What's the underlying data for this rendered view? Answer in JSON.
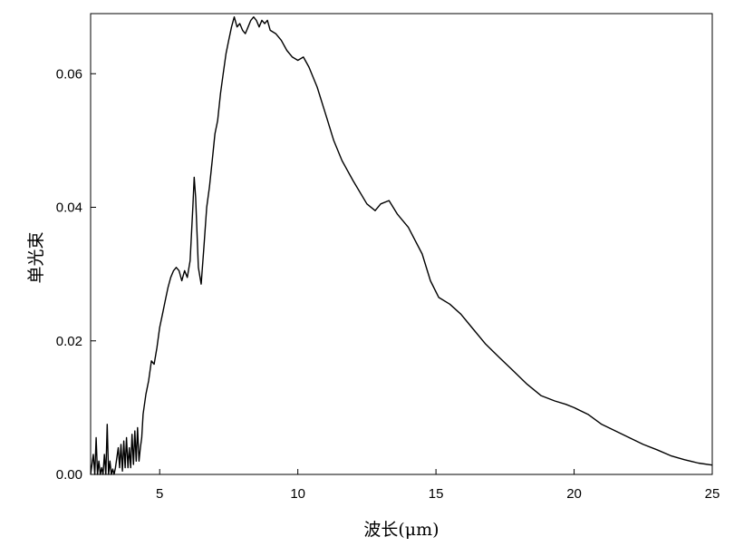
{
  "chart_data": {
    "type": "line",
    "title": "",
    "xlabel": "波长(μm)",
    "ylabel": "单光束",
    "xlim": [
      2.5,
      25
    ],
    "ylim": [
      0,
      0.069
    ],
    "xticks": [
      5,
      10,
      15,
      20,
      25
    ],
    "xtick_labels": [
      "5",
      "10",
      "15",
      "20",
      "25"
    ],
    "yticks": [
      0,
      0.02,
      0.04,
      0.06
    ],
    "ytick_labels": [
      "0.00",
      "0.02",
      "0.04",
      "0.06"
    ],
    "grid": false,
    "legend": "none",
    "line_color": "#000000",
    "series": [
      {
        "x": [
          2.5,
          2.6,
          2.65,
          2.7,
          2.75,
          2.8,
          2.85,
          2.9,
          2.95,
          3.0,
          3.05,
          3.1,
          3.15,
          3.2,
          3.25,
          3.3,
          3.35,
          3.4,
          3.5,
          3.55,
          3.6,
          3.65,
          3.7,
          3.75,
          3.8,
          3.85,
          3.9,
          3.95,
          4.0,
          4.05,
          4.1,
          4.15,
          4.2,
          4.25,
          4.3,
          4.35,
          4.4,
          4.5,
          4.6,
          4.7,
          4.8,
          4.9,
          5.0,
          5.1,
          5.2,
          5.3,
          5.4,
          5.5,
          5.6,
          5.7,
          5.8,
          5.9,
          6.0,
          6.1,
          6.2,
          6.25,
          6.3,
          6.4,
          6.5,
          6.6,
          6.7,
          6.8,
          6.9,
          7.0,
          7.1,
          7.2,
          7.3,
          7.4,
          7.5,
          7.6,
          7.7,
          7.8,
          7.9,
          8.0,
          8.1,
          8.2,
          8.3,
          8.4,
          8.5,
          8.6,
          8.7,
          8.8,
          8.9,
          9.0,
          9.2,
          9.4,
          9.6,
          9.8,
          10.0,
          10.2,
          10.4,
          10.7,
          11.0,
          11.3,
          11.6,
          12.0,
          12.5,
          12.8,
          13.0,
          13.3,
          13.6,
          14.0,
          14.5,
          14.8,
          15.1,
          15.5,
          15.9,
          16.3,
          16.8,
          17.3,
          17.8,
          18.3,
          18.8,
          19.3,
          19.7,
          20.0,
          20.5,
          21.0,
          21.5,
          22.0,
          22.5,
          23.0,
          23.5,
          24.0,
          24.5,
          25.0
        ],
        "values": [
          0.0,
          0.003,
          0.0,
          0.0055,
          0.0,
          0.002,
          0.0,
          0.001,
          0.0,
          0.003,
          0.0,
          0.0075,
          0.0,
          0.002,
          0.0,
          0.0008,
          0.0,
          0.001,
          0.004,
          0.001,
          0.0045,
          0.0005,
          0.005,
          0.001,
          0.0055,
          0.001,
          0.004,
          0.001,
          0.006,
          0.0015,
          0.0065,
          0.002,
          0.007,
          0.002,
          0.004,
          0.0055,
          0.009,
          0.012,
          0.014,
          0.017,
          0.0165,
          0.019,
          0.022,
          0.024,
          0.026,
          0.028,
          0.0295,
          0.0305,
          0.031,
          0.0305,
          0.029,
          0.0305,
          0.0295,
          0.032,
          0.04,
          0.0445,
          0.0415,
          0.031,
          0.0285,
          0.034,
          0.04,
          0.043,
          0.047,
          0.051,
          0.053,
          0.057,
          0.06,
          0.063,
          0.065,
          0.067,
          0.0685,
          0.067,
          0.0675,
          0.0665,
          0.066,
          0.067,
          0.068,
          0.0685,
          0.068,
          0.067,
          0.068,
          0.0675,
          0.068,
          0.0665,
          0.066,
          0.065,
          0.0635,
          0.0625,
          0.062,
          0.0625,
          0.061,
          0.058,
          0.054,
          0.05,
          0.047,
          0.044,
          0.0405,
          0.0395,
          0.0405,
          0.041,
          0.039,
          0.037,
          0.033,
          0.029,
          0.0265,
          0.0255,
          0.024,
          0.022,
          0.0195,
          0.0175,
          0.0155,
          0.0135,
          0.0118,
          0.011,
          0.0105,
          0.01,
          0.009,
          0.0075,
          0.0065,
          0.0055,
          0.0045,
          0.0037,
          0.0028,
          0.0022,
          0.0017,
          0.0014
        ]
      }
    ]
  }
}
